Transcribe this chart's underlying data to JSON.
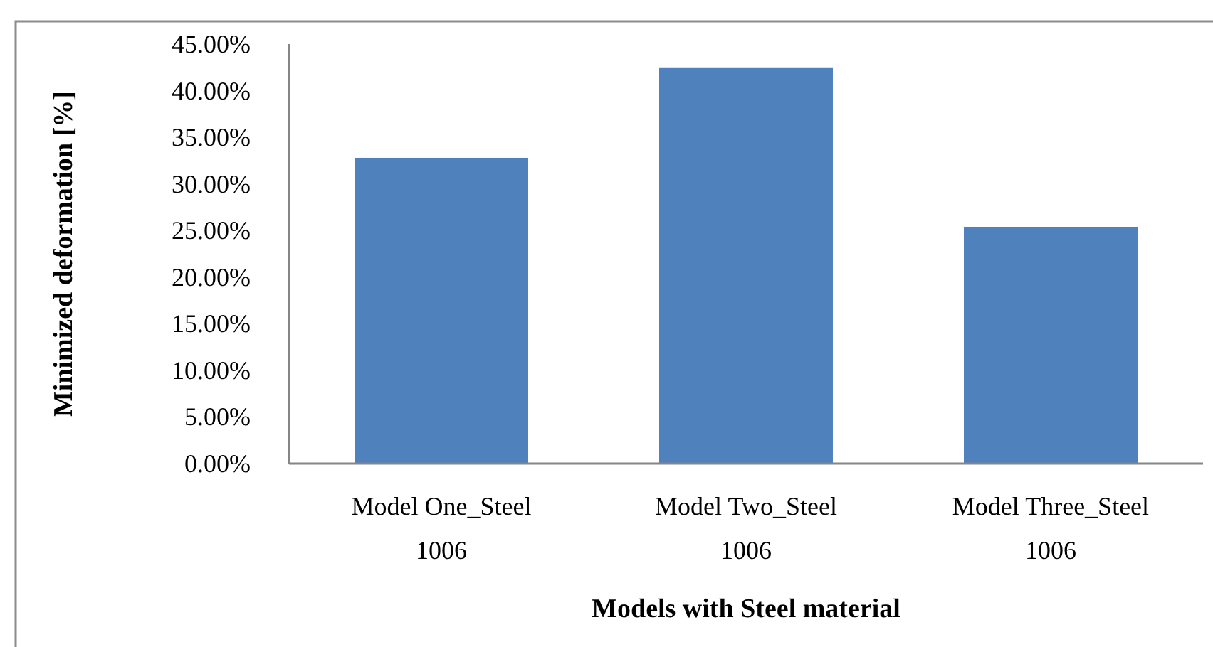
{
  "chart_data": {
    "type": "bar",
    "xlabel": "Models with Steel material",
    "ylabel": "Minimized deformation [%]",
    "categories": [
      "Model One_Steel 1006",
      "Model Two_Steel 1006",
      "Model Three_Steel 1006"
    ],
    "values": [
      32.8,
      42.5,
      25.4
    ],
    "color": "#4f81bd",
    "ylim": [
      0,
      45
    ],
    "yticks": [
      {
        "value": 0,
        "label": "0.00%"
      },
      {
        "value": 5,
        "label": "5.00%"
      },
      {
        "value": 10,
        "label": "10.00%"
      },
      {
        "value": 15,
        "label": "15.00%"
      },
      {
        "value": 20,
        "label": "20.00%"
      },
      {
        "value": 25,
        "label": "25.00%"
      },
      {
        "value": 30,
        "label": "30.00%"
      },
      {
        "value": 35,
        "label": "35.00%"
      },
      {
        "value": 40,
        "label": "40.00%"
      },
      {
        "value": 45,
        "label": "45.00%"
      }
    ]
  }
}
